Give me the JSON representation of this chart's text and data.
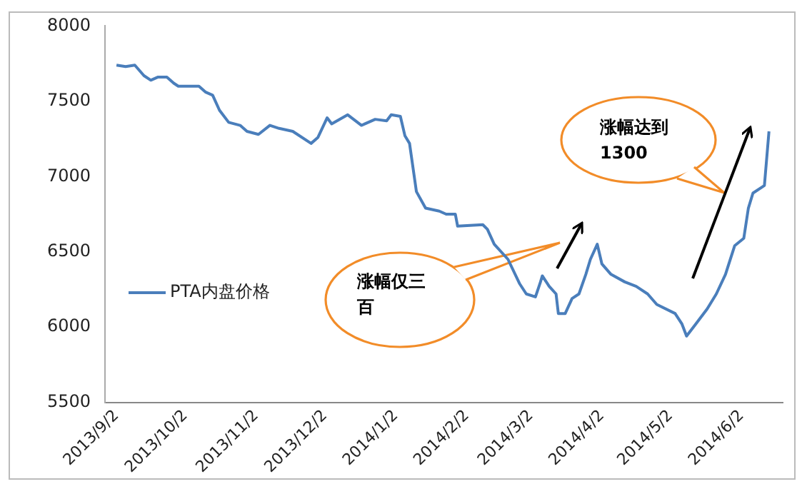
{
  "chart_data": {
    "type": "line",
    "x": [
      "2013-09-02",
      "2013-09-06",
      "2013-09-10",
      "2013-09-14",
      "2013-09-17",
      "2013-09-20",
      "2013-09-24",
      "2013-09-27",
      "2013-09-29",
      "2013-10-08",
      "2013-10-11",
      "2013-10-14",
      "2013-10-17",
      "2013-10-21",
      "2013-10-26",
      "2013-10-29",
      "2013-11-03",
      "2013-11-08",
      "2013-11-12",
      "2013-11-18",
      "2013-11-26",
      "2013-11-29",
      "2013-12-03",
      "2013-12-05",
      "2013-12-12",
      "2013-12-18",
      "2013-12-24",
      "2013-12-29",
      "2013-12-31",
      "2014-01-04",
      "2014-01-06",
      "2014-01-08",
      "2014-01-11",
      "2014-01-15",
      "2014-01-21",
      "2014-01-24",
      "2014-01-28",
      "2014-01-29",
      "2014-02-09",
      "2014-02-11",
      "2014-02-14",
      "2014-02-20",
      "2014-02-25",
      "2014-02-28",
      "2014-03-04",
      "2014-03-06",
      "2014-03-07",
      "2014-03-10",
      "2014-03-13",
      "2014-03-14",
      "2014-03-17",
      "2014-03-20",
      "2014-03-23",
      "2014-03-26",
      "2014-03-28",
      "2014-03-31",
      "2014-04-02",
      "2014-04-06",
      "2014-04-12",
      "2014-04-17",
      "2014-04-22",
      "2014-04-26",
      "2014-05-04",
      "2014-05-07",
      "2014-05-09",
      "2014-05-13",
      "2014-05-18",
      "2014-05-22",
      "2014-05-26",
      "2014-05-30",
      "2014-06-03",
      "2014-06-05",
      "2014-06-07",
      "2014-06-12",
      "2014-06-14"
    ],
    "series": [
      {
        "name": "PTA内盘价格",
        "color": "#4a7ebb",
        "values": [
          7740,
          7730,
          7740,
          7670,
          7640,
          7660,
          7660,
          7620,
          7600,
          7600,
          7560,
          7540,
          7440,
          7360,
          7340,
          7300,
          7280,
          7340,
          7320,
          7300,
          7220,
          7260,
          7390,
          7350,
          7410,
          7340,
          7380,
          7370,
          7410,
          7400,
          7270,
          7220,
          6900,
          6790,
          6770,
          6750,
          6750,
          6670,
          6680,
          6650,
          6550,
          6450,
          6290,
          6220,
          6200,
          6290,
          6340,
          6270,
          6220,
          6090,
          6090,
          6190,
          6220,
          6350,
          6450,
          6550,
          6420,
          6350,
          6300,
          6270,
          6220,
          6150,
          6090,
          6020,
          5940,
          6020,
          6120,
          6220,
          6350,
          6540,
          6590,
          6790,
          6890,
          6940,
          7300
        ]
      }
    ],
    "xlim": [
      "2013-08-28",
      "2014-06-20"
    ],
    "xticks": [
      {
        "value": "2013-09-02",
        "label": "2013/9/2"
      },
      {
        "value": "2013-10-02",
        "label": "2013/10/2"
      },
      {
        "value": "2013-11-02",
        "label": "2013/11/2"
      },
      {
        "value": "2013-12-02",
        "label": "2013/12/2"
      },
      {
        "value": "2014-01-02",
        "label": "2014/1/2"
      },
      {
        "value": "2014-02-02",
        "label": "2014/2/2"
      },
      {
        "value": "2014-03-02",
        "label": "2014/3/2"
      },
      {
        "value": "2014-04-02",
        "label": "2014/4/2"
      },
      {
        "value": "2014-05-02",
        "label": "2014/5/2"
      },
      {
        "value": "2014-06-02",
        "label": "2014/6/2"
      }
    ],
    "ylim": [
      5500,
      8000
    ],
    "yticks": [
      5500,
      6000,
      6500,
      7000,
      7500,
      8000
    ],
    "grid": false,
    "legend": "left",
    "marker": "none",
    "line_style": "solid",
    "annotations": [
      "涨幅仅三百",
      "涨幅达到1300"
    ]
  }
}
